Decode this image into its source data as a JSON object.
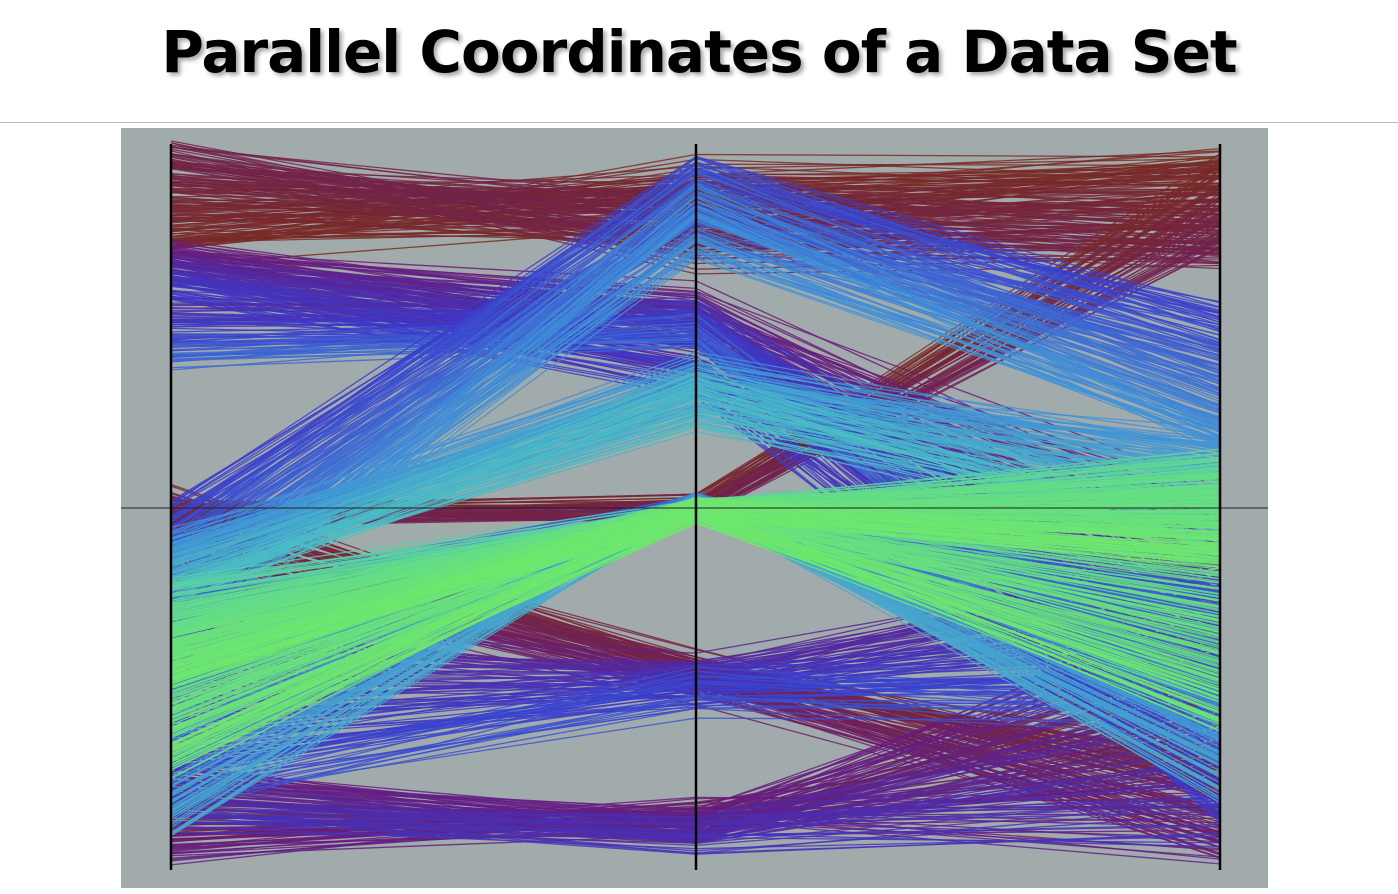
{
  "slide": {
    "title": "Parallel Coordinates of a Data Set"
  },
  "chart_data": {
    "type": "parallel-coordinates",
    "axis_count": 3,
    "value_range": [
      0,
      1
    ],
    "reference_line_value": 0.5,
    "background": "#a1abab",
    "palette": [
      "#7a2b20",
      "#6a1a78",
      "#3a3acc",
      "#3f8fd8",
      "#4dc5c0",
      "#6fe86a"
    ],
    "line_count": 1400,
    "cluster_count": 13
  }
}
